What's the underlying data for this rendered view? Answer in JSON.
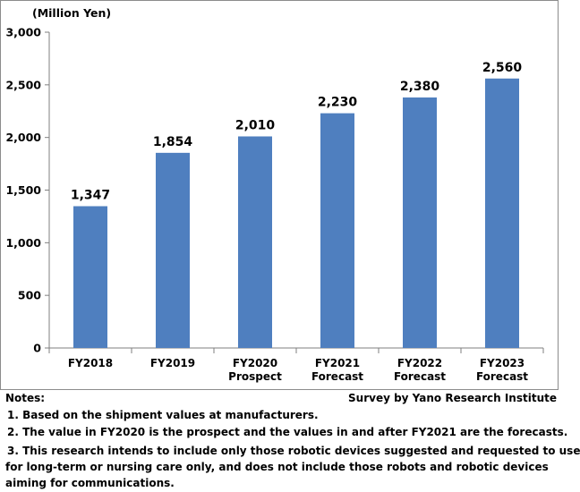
{
  "chart_data": {
    "type": "bar",
    "unit_label": "(Million Yen)",
    "categories": [
      [
        "FY2018"
      ],
      [
        "FY2019"
      ],
      [
        "FY2020",
        "Prospect"
      ],
      [
        "FY2021",
        "Forecast"
      ],
      [
        "FY2022",
        "Forecast"
      ],
      [
        "FY2023",
        "Forecast"
      ]
    ],
    "values": [
      1347,
      1854,
      2010,
      2230,
      2380,
      2560
    ],
    "value_labels": [
      "1,347",
      "1,854",
      "2,010",
      "2,230",
      "2,380",
      "2,560"
    ],
    "yticks": [
      "3,000",
      "2,500",
      "2,000",
      "1,500",
      "1,000",
      "500",
      "0"
    ],
    "ytick_values": [
      3000,
      2500,
      2000,
      1500,
      1000,
      500,
      0
    ],
    "ylim": [
      0,
      3000
    ],
    "grid": false,
    "bar_color": "#4f7fbf"
  },
  "notes": {
    "heading": "Notes:",
    "source": "Survey by Yano Research Institute",
    "items": [
      "1. Based on the shipment values at manufacturers.",
      "2. The value in FY2020 is the prospect and the values in and after FY2021 are the forecasts.",
      "3. This research intends to include only those robotic devices suggested and requested to use",
      "for long-term or nursing care only, and does not include those robots and robotic devices",
      "aiming for communications."
    ]
  }
}
